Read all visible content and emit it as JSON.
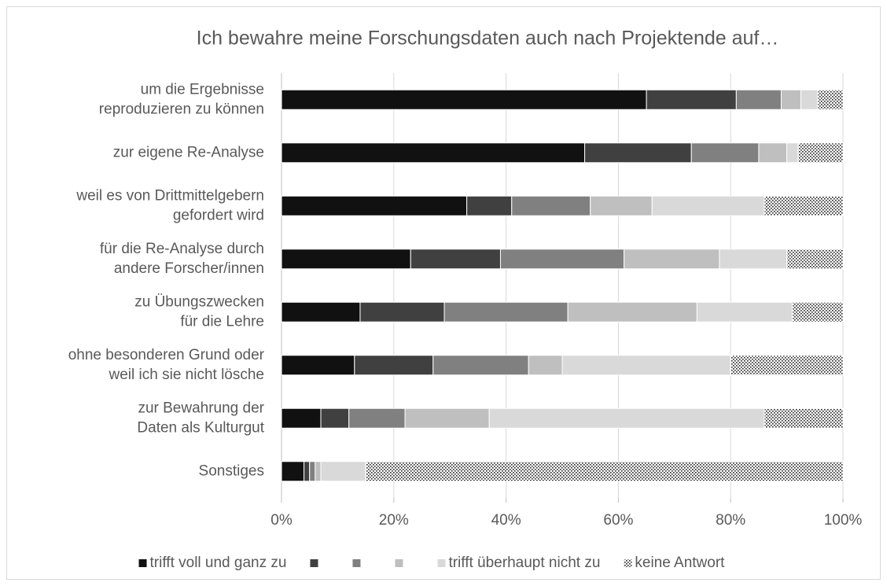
{
  "chart_data": {
    "type": "stacked-barh",
    "title": "Ich bewahre meine Forschungsdaten auch nach Projektende auf…",
    "categories": [
      [
        "um die Ergebnisse",
        "reproduzieren zu können"
      ],
      [
        "zur eigene Re-Analyse"
      ],
      [
        "weil es von Drittmittelgebern",
        "gefordert wird"
      ],
      [
        "für die Re-Analyse durch",
        "andere Forscher/innen"
      ],
      [
        "zu Übungszwecken",
        "für die Lehre"
      ],
      [
        "ohne besonderen Grund oder",
        "weil ich sie nicht lösche"
      ],
      [
        "zur Bewahrung der",
        "Daten als Kulturgut"
      ],
      [
        "Sonstiges"
      ]
    ],
    "series": [
      {
        "name": "trifft voll und ganz zu",
        "color": "#111111",
        "values": [
          65,
          54,
          33,
          23,
          14,
          13,
          7,
          4
        ]
      },
      {
        "name": null,
        "color": "#404040",
        "values": [
          16,
          19,
          8,
          16,
          15,
          14,
          5,
          1
        ]
      },
      {
        "name": null,
        "color": "#808080",
        "values": [
          8,
          12,
          14,
          22,
          22,
          17,
          10,
          1
        ]
      },
      {
        "name": null,
        "color": "#bfbfbf",
        "values": [
          3.5,
          5,
          11,
          17,
          23,
          6,
          15,
          1
        ]
      },
      {
        "name": "trifft überhaupt nicht zu",
        "color": "#d9d9d9",
        "values": [
          3,
          2,
          20,
          12,
          17,
          30,
          49,
          8
        ]
      },
      {
        "name": "keine Antwort",
        "color": "pattern",
        "values": [
          4.5,
          8,
          14,
          10,
          9,
          20,
          14,
          85
        ]
      }
    ],
    "xlim": [
      0,
      100
    ],
    "xticks": [
      {
        "value": 0,
        "label": "0%"
      },
      {
        "value": 20,
        "label": "20%"
      },
      {
        "value": 40,
        "label": "40%"
      },
      {
        "value": 60,
        "label": "60%"
      },
      {
        "value": 80,
        "label": "80%"
      },
      {
        "value": 100,
        "label": "100%"
      }
    ],
    "grid": true,
    "legend": "bottom"
  }
}
